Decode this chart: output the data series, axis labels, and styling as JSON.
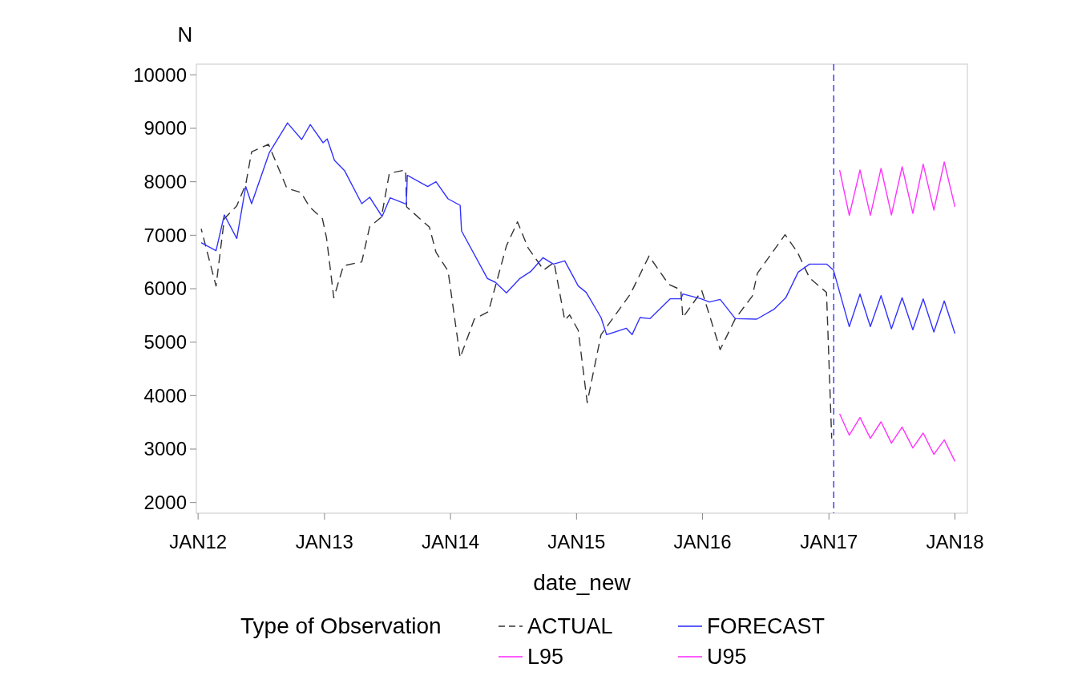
{
  "chart_data": {
    "type": "line",
    "xlabel": "date_new",
    "ylabel": "N",
    "legend_title": "Type of Observation",
    "legend": "bottom",
    "grid": false,
    "xlim": [
      "2011-12-27",
      "2018-02-06"
    ],
    "ylim": [
      1800,
      10200
    ],
    "xticks": [
      {
        "value": "2012-01-01",
        "label": "JAN12"
      },
      {
        "value": "2013-01-01",
        "label": "JAN13"
      },
      {
        "value": "2014-01-01",
        "label": "JAN14"
      },
      {
        "value": "2015-01-01",
        "label": "JAN15"
      },
      {
        "value": "2016-01-01",
        "label": "JAN16"
      },
      {
        "value": "2017-01-01",
        "label": "JAN17"
      },
      {
        "value": "2018-01-01",
        "label": "JAN18"
      }
    ],
    "yticks": [
      2000,
      3000,
      4000,
      5000,
      6000,
      7000,
      8000,
      9000,
      10000
    ],
    "ref_lines": [
      {
        "axis": "x",
        "value": "2017-01-15",
        "color": "#3333ff",
        "line_style": "dashed"
      }
    ],
    "series": [
      {
        "name": "ACTUAL",
        "color": "#333333",
        "line_style": "dashed",
        "x": [
          "2012-01-10",
          "2012-02-22",
          "2012-03-17",
          "2012-04-22",
          "2012-05-18",
          "2012-06-04",
          "2012-07-23",
          "2012-09-14",
          "2012-10-25",
          "2012-11-19",
          "2012-12-26",
          "2013-01-07",
          "2013-01-28",
          "2013-02-25",
          "2013-04-19",
          "2013-05-12",
          "2013-06-15",
          "2013-07-08",
          "2013-08-24",
          "2013-08-27",
          "2013-11-01",
          "2013-11-20",
          "2013-12-25",
          "2014-01-29",
          "2014-03-11",
          "2014-04-21",
          "2014-06-12",
          "2014-07-14",
          "2014-08-14",
          "2014-09-28",
          "2014-10-28",
          "2014-11-28",
          "2014-12-12",
          "2015-01-06",
          "2015-02-01",
          "2015-03-13",
          "2015-06-06",
          "2015-07-30",
          "2015-09-25",
          "2015-10-30",
          "2015-11-05",
          "2015-12-30",
          "2016-02-21",
          "2016-04-05",
          "2016-05-24",
          "2016-06-08",
          "2016-08-27",
          "2016-10-02",
          "2016-11-06",
          "2016-12-25",
          "2017-01-09"
        ],
        "values": [
          7120,
          6050,
          7310,
          7550,
          7950,
          8560,
          8700,
          7880,
          7800,
          7530,
          7310,
          6950,
          5830,
          6430,
          6500,
          7160,
          7340,
          8160,
          8220,
          7530,
          7150,
          6680,
          6330,
          4710,
          5430,
          5570,
          6800,
          7250,
          6760,
          6350,
          6490,
          5410,
          5510,
          5220,
          3870,
          5140,
          5900,
          6610,
          6080,
          5980,
          5460,
          5960,
          4860,
          5440,
          5860,
          6290,
          7010,
          6680,
          6200,
          5930,
          3200
        ]
      },
      {
        "name": "FORECAST",
        "color": "#3333ff",
        "line_style": "solid",
        "x": [
          "2012-01-10",
          "2012-02-22",
          "2012-03-17",
          "2012-04-22",
          "2012-05-18",
          "2012-06-04",
          "2012-07-25",
          "2012-09-16",
          "2012-10-27",
          "2012-11-21",
          "2012-12-28",
          "2013-01-09",
          "2013-01-30",
          "2013-02-28",
          "2013-04-19",
          "2013-05-12",
          "2013-06-17",
          "2013-07-10",
          "2013-08-26",
          "2013-08-29",
          "2013-10-27",
          "2013-11-20",
          "2013-12-25",
          "2014-01-29",
          "2014-02-02",
          "2014-04-18",
          "2014-05-11",
          "2014-06-12",
          "2014-07-21",
          "2014-08-21",
          "2014-09-26",
          "2014-10-26",
          "2014-11-28",
          "2015-01-06",
          "2015-01-29",
          "2015-03-13",
          "2015-03-29",
          "2015-05-25",
          "2015-06-11",
          "2015-07-04",
          "2015-08-02",
          "2015-09-29",
          "2015-10-30",
          "2015-11-05",
          "2015-12-28",
          "2016-01-21",
          "2016-02-21",
          "2016-04-05",
          "2016-06-06",
          "2016-07-27",
          "2016-08-29",
          "2016-10-04",
          "2016-11-06",
          "2016-12-25",
          "2017-01-14",
          "2017-03-01",
          "2017-04-01",
          "2017-05-01",
          "2017-06-01",
          "2017-07-01",
          "2017-08-01",
          "2017-09-01",
          "2017-10-01",
          "2017-11-01",
          "2017-12-01",
          "2018-01-01"
        ],
        "values": [
          6860,
          6710,
          7380,
          6940,
          7910,
          7590,
          8540,
          9100,
          8790,
          9070,
          8730,
          8800,
          8400,
          8210,
          7590,
          7710,
          7350,
          7700,
          7580,
          8120,
          7910,
          8000,
          7680,
          7560,
          7080,
          6190,
          6120,
          5920,
          6190,
          6320,
          6580,
          6460,
          6520,
          6050,
          5930,
          5460,
          5140,
          5260,
          5140,
          5460,
          5440,
          5810,
          5810,
          5900,
          5810,
          5750,
          5800,
          5440,
          5430,
          5620,
          5830,
          6310,
          6460,
          6460,
          6350,
          5290,
          5900,
          5290,
          5870,
          5250,
          5830,
          5230,
          5810,
          5190,
          5770,
          5160
        ]
      },
      {
        "name": "L95",
        "color": "#ff33ff",
        "line_style": "solid",
        "x": [
          "2017-02-01",
          "2017-03-01",
          "2017-04-01",
          "2017-05-01",
          "2017-06-01",
          "2017-07-01",
          "2017-08-01",
          "2017-09-01",
          "2017-10-01",
          "2017-11-01",
          "2017-12-01",
          "2018-01-01"
        ],
        "values": [
          3660,
          3260,
          3590,
          3200,
          3510,
          3110,
          3410,
          3020,
          3300,
          2900,
          3170,
          2770
        ]
      },
      {
        "name": "U95",
        "color": "#ff33ff",
        "line_style": "solid",
        "x": [
          "2017-02-01",
          "2017-03-01",
          "2017-04-01",
          "2017-05-01",
          "2017-06-01",
          "2017-07-01",
          "2017-08-01",
          "2017-09-01",
          "2017-10-01",
          "2017-11-01",
          "2017-12-01",
          "2018-01-01"
        ],
        "values": [
          8220,
          7370,
          8220,
          7370,
          8250,
          7380,
          8280,
          7410,
          8330,
          7470,
          8370,
          7530
        ]
      }
    ]
  }
}
